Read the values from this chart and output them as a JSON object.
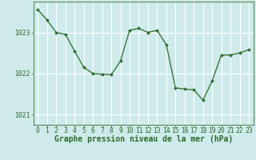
{
  "x": [
    0,
    1,
    2,
    3,
    4,
    5,
    6,
    7,
    8,
    9,
    10,
    11,
    12,
    13,
    14,
    15,
    16,
    17,
    18,
    19,
    20,
    21,
    22,
    23
  ],
  "y": [
    1023.55,
    1023.3,
    1023.0,
    1022.95,
    1022.55,
    1022.15,
    1022.0,
    1021.98,
    1021.97,
    1022.3,
    1023.05,
    1023.1,
    1023.0,
    1023.05,
    1022.7,
    1021.65,
    1021.62,
    1021.6,
    1021.35,
    1021.82,
    1022.45,
    1022.45,
    1022.5,
    1022.58
  ],
  "ylim": [
    1020.75,
    1023.75
  ],
  "yticks": [
    1021,
    1022,
    1023
  ],
  "xticks": [
    0,
    1,
    2,
    3,
    4,
    5,
    6,
    7,
    8,
    9,
    10,
    11,
    12,
    13,
    14,
    15,
    16,
    17,
    18,
    19,
    20,
    21,
    22,
    23
  ],
  "line_color": "#2d6a2d",
  "marker_color": "#2d6a2d",
  "bg_color": "#ceeaea",
  "plot_bg_color": "#ceeaea",
  "grid_color": "#ffffff",
  "border_color": "#5a8a5a",
  "xlabel": "Graphe pression niveau de la mer (hPa)",
  "xlabel_color": "#2d6a2d",
  "tick_color": "#2d6a2d",
  "tick_fontsize": 5.8,
  "xlabel_fontsize": 7.0,
  "figsize": [
    3.2,
    2.0
  ],
  "dpi": 100
}
